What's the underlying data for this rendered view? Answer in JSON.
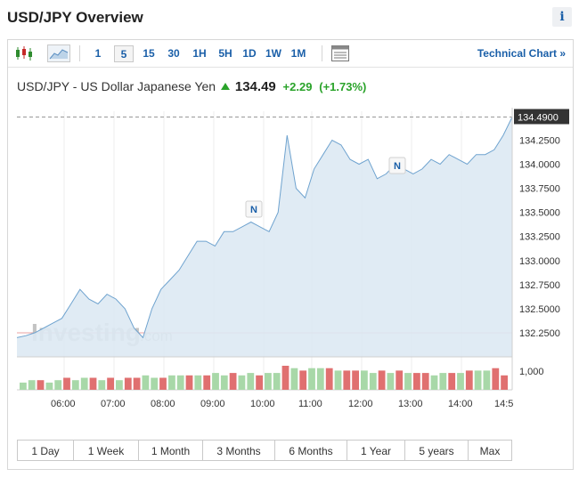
{
  "header": {
    "title": "USD/JPY Overview",
    "info_label": "i"
  },
  "toolbar": {
    "timeframes": [
      "1",
      "5",
      "15",
      "30",
      "1H",
      "5H",
      "1D",
      "1W",
      "1M"
    ],
    "active_timeframe": "5",
    "technical_chart_label": "Technical Chart »",
    "icons": [
      "candlestick-icon",
      "area-chart-icon",
      "table-icon"
    ]
  },
  "quote": {
    "name": "USD/JPY - US Dollar Japanese Yen",
    "price": "134.49",
    "change": "+2.29",
    "change_pct": "(+1.73%)",
    "direction": "up",
    "up_color": "#2aa32a"
  },
  "chart": {
    "current_label": "134.4900",
    "watermark": "Investing.com",
    "volume_label": "1,000",
    "y_ticks": [
      "134.2500",
      "134.0000",
      "133.7500",
      "133.5000",
      "133.2500",
      "133.0000",
      "132.7500",
      "132.5000",
      "132.2500"
    ],
    "x_ticks": [
      "06:00",
      "07:00",
      "08:00",
      "09:00",
      "10:00",
      "11:00",
      "12:00",
      "13:00",
      "14:00",
      "14:5"
    ],
    "news_markers": [
      "N",
      "N"
    ],
    "line_color": "#6fa3cf",
    "fill_color": "#dde9f3"
  },
  "chart_data": {
    "type": "area",
    "title": "",
    "ylim": [
      132.0,
      134.55
    ],
    "x": [
      "05:40",
      "05:50",
      "06:00",
      "06:10",
      "06:20",
      "06:30",
      "06:40",
      "06:50",
      "07:00",
      "07:10",
      "07:20",
      "07:30",
      "07:40",
      "07:50",
      "08:00",
      "08:10",
      "08:20",
      "08:30",
      "08:40",
      "08:50",
      "09:00",
      "09:10",
      "09:20",
      "09:30",
      "09:40",
      "09:50",
      "10:00",
      "10:10",
      "10:20",
      "10:30",
      "10:40",
      "10:50",
      "11:00",
      "11:10",
      "11:20",
      "11:30",
      "11:40",
      "11:50",
      "12:00",
      "12:10",
      "12:20",
      "12:30",
      "12:40",
      "12:50",
      "13:00",
      "13:10",
      "13:20",
      "13:30",
      "13:40",
      "13:50",
      "14:00",
      "14:10",
      "14:20",
      "14:30",
      "14:40",
      "14:50"
    ],
    "values": [
      132.2,
      132.22,
      132.25,
      132.3,
      132.35,
      132.4,
      132.55,
      132.7,
      132.6,
      132.55,
      132.65,
      132.6,
      132.5,
      132.3,
      132.2,
      132.5,
      132.7,
      132.8,
      132.9,
      133.05,
      133.2,
      133.2,
      133.15,
      133.3,
      133.3,
      133.35,
      133.4,
      133.35,
      133.3,
      133.5,
      134.3,
      133.75,
      133.65,
      133.95,
      134.1,
      134.25,
      134.2,
      134.05,
      134.0,
      134.05,
      133.85,
      133.9,
      134.0,
      133.95,
      133.9,
      133.95,
      134.05,
      134.0,
      134.1,
      134.05,
      134.0,
      134.1,
      134.1,
      134.15,
      134.3,
      134.49
    ],
    "volume": [
      3,
      4,
      4,
      3,
      4,
      5,
      4,
      5,
      5,
      4,
      5,
      4,
      5,
      5,
      6,
      5,
      5,
      6,
      6,
      6,
      6,
      6,
      7,
      6,
      7,
      6,
      7,
      6,
      7,
      7,
      10,
      9,
      8,
      9,
      9,
      9,
      8,
      8,
      8,
      8,
      7,
      8,
      7,
      8,
      7,
      7,
      7,
      6,
      7,
      7,
      7,
      8,
      8,
      8,
      9,
      6
    ],
    "volume_up": [
      true,
      true,
      false,
      true,
      true,
      false,
      true,
      true,
      false,
      true,
      false,
      true,
      false,
      false,
      true,
      true,
      false,
      true,
      true,
      false,
      true,
      false,
      true,
      true,
      false,
      true,
      true,
      false,
      true,
      true,
      false,
      true,
      false,
      true,
      true,
      false,
      true,
      false,
      false,
      true,
      true,
      false,
      true,
      false,
      true,
      false,
      false,
      true,
      true,
      false,
      true,
      false,
      true,
      true,
      false,
      false
    ]
  },
  "ranges": [
    "1 Day",
    "1 Week",
    "1 Month",
    "3 Months",
    "6 Months",
    "1 Year",
    "5 years",
    "Max"
  ]
}
